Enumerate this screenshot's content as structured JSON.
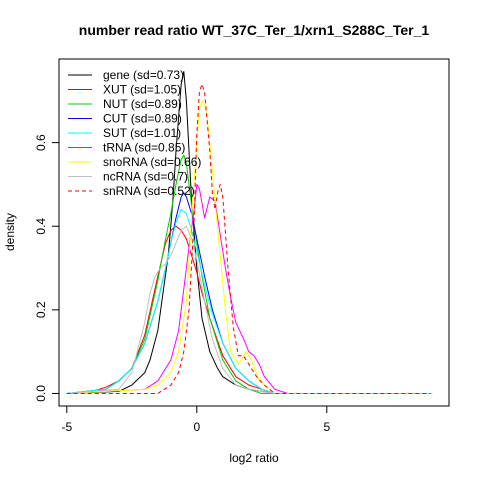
{
  "chart_data": {
    "type": "line",
    "title": "number read ratio WT_37C_Ter_1/xrn1_S288C_Ter_1",
    "xlabel": "log2 ratio",
    "ylabel": "density",
    "xlim": [
      -5.3,
      9.7
    ],
    "ylim": [
      -0.03,
      0.8
    ],
    "x_ticks": [
      -5,
      0,
      5
    ],
    "y_ticks": [
      0.0,
      0.2,
      0.4,
      0.6
    ],
    "x_tick_labels": [
      "-5",
      "0",
      "5"
    ],
    "y_tick_labels": [
      "0.0",
      "0.2",
      "0.4",
      "0.6"
    ],
    "legend_position": "top-left",
    "grid": false,
    "series": [
      {
        "name": "gene (sd=0.73)",
        "color": "#000000",
        "dash": "solid",
        "x": [
          -5.0,
          -3.0,
          -2.5,
          -2.0,
          -1.8,
          -1.5,
          -1.3,
          -1.1,
          -1.0,
          -0.9,
          -0.8,
          -0.7,
          -0.6,
          -0.5,
          -0.4,
          -0.3,
          -0.2,
          0.0,
          0.2,
          0.5,
          0.8,
          1.0,
          1.5,
          2.0,
          2.5,
          3.0,
          9.0
        ],
        "y": [
          0.0,
          0.005,
          0.02,
          0.05,
          0.08,
          0.15,
          0.24,
          0.33,
          0.4,
          0.48,
          0.58,
          0.66,
          0.74,
          0.77,
          0.7,
          0.58,
          0.46,
          0.3,
          0.18,
          0.1,
          0.06,
          0.04,
          0.02,
          0.01,
          0.005,
          0.0,
          0.0
        ]
      },
      {
        "name": "XUT (sd=1.05)",
        "color": "#ff0000",
        "dash": "solid",
        "x": [
          -5.0,
          -4.0,
          -3.5,
          -3.0,
          -2.5,
          -2.0,
          -1.5,
          -1.2,
          -1.0,
          -0.8,
          -0.6,
          -0.4,
          -0.2,
          0.0,
          0.2,
          0.5,
          1.0,
          1.5,
          2.0,
          2.5,
          3.0,
          9.0
        ],
        "y": [
          0.0,
          0.005,
          0.015,
          0.03,
          0.06,
          0.14,
          0.28,
          0.36,
          0.39,
          0.4,
          0.39,
          0.37,
          0.33,
          0.29,
          0.24,
          0.18,
          0.09,
          0.04,
          0.02,
          0.01,
          0.0,
          0.0
        ]
      },
      {
        "name": "NUT (sd=0.89)",
        "color": "#00cc00",
        "dash": "solid",
        "x": [
          -5.0,
          -3.5,
          -3.0,
          -2.5,
          -2.0,
          -1.5,
          -1.2,
          -1.0,
          -0.8,
          -0.6,
          -0.5,
          -0.4,
          -0.3,
          -0.2,
          0.0,
          0.2,
          0.5,
          1.0,
          1.5,
          2.0,
          2.5,
          9.0
        ],
        "y": [
          0.0,
          0.01,
          0.03,
          0.06,
          0.13,
          0.27,
          0.37,
          0.43,
          0.5,
          0.56,
          0.57,
          0.55,
          0.5,
          0.45,
          0.36,
          0.28,
          0.18,
          0.08,
          0.03,
          0.01,
          0.0,
          0.0
        ]
      },
      {
        "name": "CUT (sd=0.89)",
        "color": "#0000ff",
        "dash": "solid",
        "x": [
          -5.0,
          -3.5,
          -3.0,
          -2.5,
          -2.0,
          -1.5,
          -1.2,
          -1.0,
          -0.8,
          -0.6,
          -0.5,
          -0.4,
          -0.2,
          0.0,
          0.3,
          0.6,
          1.0,
          1.5,
          2.0,
          2.5,
          3.0,
          9.0
        ],
        "y": [
          0.0,
          0.01,
          0.03,
          0.06,
          0.12,
          0.22,
          0.3,
          0.36,
          0.42,
          0.47,
          0.48,
          0.47,
          0.43,
          0.37,
          0.28,
          0.2,
          0.12,
          0.06,
          0.03,
          0.01,
          0.0,
          0.0
        ]
      },
      {
        "name": "SUT (sd=1.01)",
        "color": "#00ffff",
        "dash": "solid",
        "x": [
          -5.0,
          -3.5,
          -3.0,
          -2.5,
          -2.0,
          -1.5,
          -1.2,
          -1.0,
          -0.8,
          -0.6,
          -0.4,
          -0.2,
          0.0,
          0.3,
          0.6,
          1.0,
          1.5,
          2.0,
          2.5,
          3.0,
          9.0
        ],
        "y": [
          0.0,
          0.01,
          0.03,
          0.06,
          0.12,
          0.22,
          0.3,
          0.36,
          0.41,
          0.44,
          0.43,
          0.39,
          0.34,
          0.26,
          0.19,
          0.12,
          0.06,
          0.03,
          0.01,
          0.0,
          0.0
        ]
      },
      {
        "name": "tRNA (sd=0.85)",
        "color": "#ff00ff",
        "dash": "solid",
        "x": [
          -5.0,
          -2.0,
          -1.5,
          -1.0,
          -0.7,
          -0.5,
          -0.3,
          -0.1,
          0.0,
          0.1,
          0.3,
          0.5,
          0.7,
          0.9,
          1.1,
          1.3,
          1.5,
          1.8,
          2.0,
          2.2,
          2.4,
          2.6,
          3.0,
          3.5,
          9.0
        ],
        "y": [
          0.0,
          0.01,
          0.03,
          0.08,
          0.15,
          0.25,
          0.35,
          0.44,
          0.5,
          0.49,
          0.42,
          0.47,
          0.46,
          0.38,
          0.3,
          0.23,
          0.17,
          0.13,
          0.1,
          0.09,
          0.07,
          0.04,
          0.01,
          0.0,
          0.0
        ]
      },
      {
        "name": "snoRNA (sd=0.66)",
        "color": "#ffff00",
        "dash": "solid",
        "x": [
          -5.0,
          -2.0,
          -1.5,
          -1.0,
          -0.7,
          -0.4,
          -0.2,
          0.0,
          0.1,
          0.2,
          0.3,
          0.4,
          0.5,
          0.7,
          0.9,
          1.1,
          1.3,
          1.6,
          1.9,
          2.1,
          2.4,
          3.0,
          9.0
        ],
        "y": [
          0.0,
          0.01,
          0.02,
          0.05,
          0.1,
          0.22,
          0.42,
          0.6,
          0.68,
          0.7,
          0.69,
          0.66,
          0.6,
          0.46,
          0.33,
          0.2,
          0.1,
          0.07,
          0.1,
          0.08,
          0.03,
          0.0,
          0.0
        ]
      },
      {
        "name": "ncRNA (sd=0.7)",
        "color": "#bebebe",
        "dash": "solid",
        "x": [
          -5.0,
          -3.0,
          -2.5,
          -2.0,
          -1.8,
          -1.6,
          -1.4,
          -1.2,
          -1.0,
          -0.8,
          -0.6,
          -0.4,
          -0.2,
          0.0,
          0.3,
          0.6,
          1.0,
          1.5,
          2.0,
          3.0,
          9.0
        ],
        "y": [
          0.0,
          0.01,
          0.05,
          0.17,
          0.24,
          0.28,
          0.3,
          0.31,
          0.33,
          0.36,
          0.39,
          0.4,
          0.37,
          0.32,
          0.22,
          0.13,
          0.06,
          0.02,
          0.01,
          0.0,
          0.0
        ]
      },
      {
        "name": "snRNA (sd=0.52)",
        "color": "#ff0000",
        "dash": "dashed",
        "x": [
          -5.0,
          -1.5,
          -1.0,
          -0.7,
          -0.5,
          -0.3,
          -0.1,
          0.0,
          0.1,
          0.2,
          0.3,
          0.5,
          0.6,
          0.7,
          0.8,
          0.9,
          1.0,
          1.2,
          1.4,
          1.6,
          1.8,
          2.0,
          2.3,
          2.6,
          3.0,
          9.0
        ],
        "y": [
          0.0,
          0.0,
          0.02,
          0.05,
          0.1,
          0.2,
          0.42,
          0.62,
          0.72,
          0.74,
          0.72,
          0.58,
          0.48,
          0.44,
          0.48,
          0.5,
          0.47,
          0.3,
          0.16,
          0.09,
          0.09,
          0.07,
          0.04,
          0.02,
          0.0,
          0.0
        ]
      }
    ]
  }
}
